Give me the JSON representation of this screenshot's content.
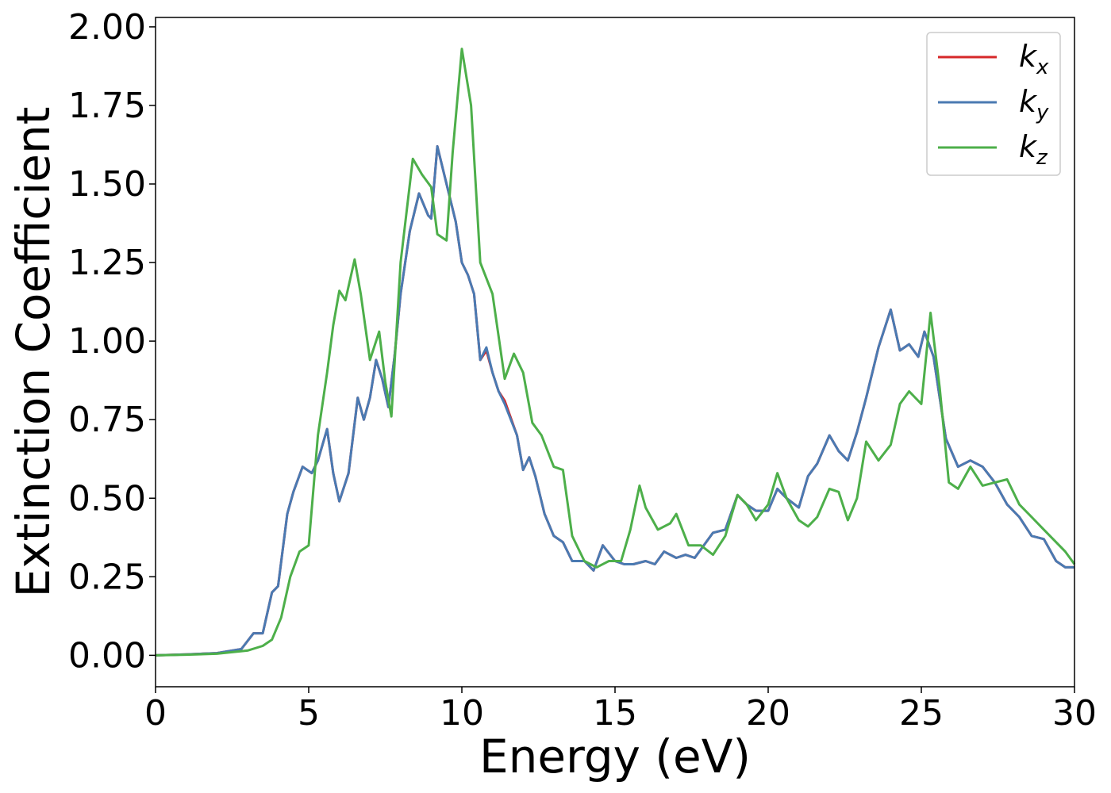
{
  "chart_data": {
    "type": "line",
    "title": "",
    "xlabel": "Energy (eV)",
    "ylabel": "Extinction Coefficient",
    "xlim": [
      0,
      30
    ],
    "ylim": [
      -0.1,
      2.03
    ],
    "xticks": [
      0,
      5,
      10,
      15,
      20,
      25,
      30
    ],
    "xtick_labels": [
      "0",
      "5",
      "10",
      "15",
      "20",
      "25",
      "30"
    ],
    "yticks": [
      0.0,
      0.25,
      0.5,
      0.75,
      1.0,
      1.25,
      1.5,
      1.75,
      2.0
    ],
    "ytick_labels": [
      "0.00",
      "0.25",
      "0.50",
      "0.75",
      "1.00",
      "1.25",
      "1.50",
      "1.75",
      "2.00"
    ],
    "grid": false,
    "legend_position": "top-right",
    "series": [
      {
        "name_base": "k",
        "name_sub": "x",
        "color": "#d62728",
        "points": [
          [
            0,
            0.0
          ],
          [
            1,
            0.003
          ],
          [
            2,
            0.007
          ],
          [
            2.8,
            0.02
          ],
          [
            3.2,
            0.07
          ],
          [
            3.5,
            0.07
          ],
          [
            3.8,
            0.2
          ],
          [
            4.0,
            0.22
          ],
          [
            4.3,
            0.45
          ],
          [
            4.5,
            0.52
          ],
          [
            4.8,
            0.6
          ],
          [
            5.1,
            0.58
          ],
          [
            5.3,
            0.62
          ],
          [
            5.6,
            0.72
          ],
          [
            5.8,
            0.58
          ],
          [
            6.0,
            0.49
          ],
          [
            6.3,
            0.58
          ],
          [
            6.6,
            0.82
          ],
          [
            6.8,
            0.75
          ],
          [
            7.0,
            0.82
          ],
          [
            7.2,
            0.94
          ],
          [
            7.4,
            0.88
          ],
          [
            7.6,
            0.79
          ],
          [
            7.8,
            0.95
          ],
          [
            8.0,
            1.15
          ],
          [
            8.3,
            1.35
          ],
          [
            8.6,
            1.47
          ],
          [
            8.9,
            1.4
          ],
          [
            9.0,
            1.39
          ],
          [
            9.2,
            1.62
          ],
          [
            9.5,
            1.5
          ],
          [
            9.8,
            1.38
          ],
          [
            10.0,
            1.25
          ],
          [
            10.2,
            1.21
          ],
          [
            10.4,
            1.15
          ],
          [
            10.6,
            0.94
          ],
          [
            10.8,
            0.97
          ],
          [
            11.0,
            0.9
          ],
          [
            11.2,
            0.84
          ],
          [
            11.4,
            0.81
          ],
          [
            11.8,
            0.7
          ],
          [
            12.0,
            0.59
          ],
          [
            12.2,
            0.63
          ],
          [
            12.4,
            0.57
          ],
          [
            12.7,
            0.45
          ],
          [
            13.0,
            0.38
          ],
          [
            13.3,
            0.36
          ],
          [
            13.6,
            0.3
          ],
          [
            14.0,
            0.3
          ],
          [
            14.3,
            0.27
          ],
          [
            14.6,
            0.35
          ],
          [
            15.0,
            0.3
          ],
          [
            15.3,
            0.29
          ],
          [
            15.6,
            0.29
          ],
          [
            16.0,
            0.3
          ],
          [
            16.3,
            0.29
          ],
          [
            16.6,
            0.33
          ],
          [
            17.0,
            0.31
          ],
          [
            17.3,
            0.32
          ],
          [
            17.6,
            0.31
          ],
          [
            17.9,
            0.35
          ],
          [
            18.2,
            0.39
          ],
          [
            18.6,
            0.4
          ],
          [
            19.0,
            0.51
          ],
          [
            19.3,
            0.48
          ],
          [
            19.6,
            0.46
          ],
          [
            20.0,
            0.46
          ],
          [
            20.3,
            0.53
          ],
          [
            20.6,
            0.5
          ],
          [
            21.0,
            0.47
          ],
          [
            21.3,
            0.57
          ],
          [
            21.6,
            0.61
          ],
          [
            22.0,
            0.7
          ],
          [
            22.3,
            0.65
          ],
          [
            22.6,
            0.62
          ],
          [
            22.9,
            0.71
          ],
          [
            23.2,
            0.82
          ],
          [
            23.6,
            0.98
          ],
          [
            24.0,
            1.1
          ],
          [
            24.3,
            0.97
          ],
          [
            24.6,
            0.99
          ],
          [
            24.9,
            0.95
          ],
          [
            25.1,
            1.03
          ],
          [
            25.4,
            0.95
          ],
          [
            25.8,
            0.69
          ],
          [
            26.2,
            0.6
          ],
          [
            26.6,
            0.62
          ],
          [
            27.0,
            0.6
          ],
          [
            27.4,
            0.55
          ],
          [
            27.8,
            0.48
          ],
          [
            28.2,
            0.44
          ],
          [
            28.6,
            0.38
          ],
          [
            29.0,
            0.37
          ],
          [
            29.4,
            0.3
          ],
          [
            29.7,
            0.28
          ],
          [
            30.0,
            0.28
          ]
        ]
      },
      {
        "name_base": "k",
        "name_sub": "y",
        "color": "#4a7ab2",
        "points": [
          [
            0,
            0.0
          ],
          [
            1,
            0.003
          ],
          [
            2,
            0.007
          ],
          [
            2.8,
            0.02
          ],
          [
            3.2,
            0.07
          ],
          [
            3.5,
            0.07
          ],
          [
            3.8,
            0.2
          ],
          [
            4.0,
            0.22
          ],
          [
            4.3,
            0.45
          ],
          [
            4.5,
            0.52
          ],
          [
            4.8,
            0.6
          ],
          [
            5.1,
            0.58
          ],
          [
            5.3,
            0.62
          ],
          [
            5.6,
            0.72
          ],
          [
            5.8,
            0.58
          ],
          [
            6.0,
            0.49
          ],
          [
            6.3,
            0.58
          ],
          [
            6.6,
            0.82
          ],
          [
            6.8,
            0.75
          ],
          [
            7.0,
            0.82
          ],
          [
            7.2,
            0.94
          ],
          [
            7.4,
            0.88
          ],
          [
            7.6,
            0.79
          ],
          [
            7.8,
            0.95
          ],
          [
            8.0,
            1.15
          ],
          [
            8.3,
            1.35
          ],
          [
            8.6,
            1.47
          ],
          [
            8.9,
            1.4
          ],
          [
            9.0,
            1.39
          ],
          [
            9.2,
            1.62
          ],
          [
            9.5,
            1.5
          ],
          [
            9.8,
            1.38
          ],
          [
            10.0,
            1.25
          ],
          [
            10.2,
            1.21
          ],
          [
            10.4,
            1.15
          ],
          [
            10.6,
            0.94
          ],
          [
            10.8,
            0.98
          ],
          [
            11.0,
            0.9
          ],
          [
            11.2,
            0.84
          ],
          [
            11.4,
            0.8
          ],
          [
            11.8,
            0.7
          ],
          [
            12.0,
            0.59
          ],
          [
            12.2,
            0.63
          ],
          [
            12.4,
            0.57
          ],
          [
            12.7,
            0.45
          ],
          [
            13.0,
            0.38
          ],
          [
            13.3,
            0.36
          ],
          [
            13.6,
            0.3
          ],
          [
            14.0,
            0.3
          ],
          [
            14.3,
            0.27
          ],
          [
            14.6,
            0.35
          ],
          [
            15.0,
            0.3
          ],
          [
            15.3,
            0.29
          ],
          [
            15.6,
            0.29
          ],
          [
            16.0,
            0.3
          ],
          [
            16.3,
            0.29
          ],
          [
            16.6,
            0.33
          ],
          [
            17.0,
            0.31
          ],
          [
            17.3,
            0.32
          ],
          [
            17.6,
            0.31
          ],
          [
            17.9,
            0.35
          ],
          [
            18.2,
            0.39
          ],
          [
            18.6,
            0.4
          ],
          [
            19.0,
            0.51
          ],
          [
            19.3,
            0.48
          ],
          [
            19.6,
            0.46
          ],
          [
            20.0,
            0.46
          ],
          [
            20.3,
            0.53
          ],
          [
            20.6,
            0.5
          ],
          [
            21.0,
            0.47
          ],
          [
            21.3,
            0.57
          ],
          [
            21.6,
            0.61
          ],
          [
            22.0,
            0.7
          ],
          [
            22.3,
            0.65
          ],
          [
            22.6,
            0.62
          ],
          [
            22.9,
            0.71
          ],
          [
            23.2,
            0.82
          ],
          [
            23.6,
            0.98
          ],
          [
            24.0,
            1.1
          ],
          [
            24.3,
            0.97
          ],
          [
            24.6,
            0.99
          ],
          [
            24.9,
            0.95
          ],
          [
            25.1,
            1.03
          ],
          [
            25.4,
            0.95
          ],
          [
            25.8,
            0.69
          ],
          [
            26.2,
            0.6
          ],
          [
            26.6,
            0.62
          ],
          [
            27.0,
            0.6
          ],
          [
            27.4,
            0.55
          ],
          [
            27.8,
            0.48
          ],
          [
            28.2,
            0.44
          ],
          [
            28.6,
            0.38
          ],
          [
            29.0,
            0.37
          ],
          [
            29.4,
            0.3
          ],
          [
            29.7,
            0.28
          ],
          [
            30.0,
            0.28
          ]
        ]
      },
      {
        "name_base": "k",
        "name_sub": "z",
        "color": "#4daf4a",
        "points": [
          [
            0,
            0.0
          ],
          [
            1,
            0.002
          ],
          [
            2,
            0.005
          ],
          [
            3,
            0.015
          ],
          [
            3.5,
            0.03
          ],
          [
            3.8,
            0.05
          ],
          [
            4.1,
            0.12
          ],
          [
            4.4,
            0.25
          ],
          [
            4.7,
            0.33
          ],
          [
            5.0,
            0.35
          ],
          [
            5.3,
            0.7
          ],
          [
            5.6,
            0.9
          ],
          [
            5.8,
            1.05
          ],
          [
            6.0,
            1.16
          ],
          [
            6.2,
            1.13
          ],
          [
            6.5,
            1.26
          ],
          [
            6.7,
            1.15
          ],
          [
            7.0,
            0.94
          ],
          [
            7.3,
            1.03
          ],
          [
            7.5,
            0.87
          ],
          [
            7.7,
            0.76
          ],
          [
            8.0,
            1.25
          ],
          [
            8.4,
            1.58
          ],
          [
            8.7,
            1.53
          ],
          [
            9.0,
            1.49
          ],
          [
            9.2,
            1.34
          ],
          [
            9.5,
            1.32
          ],
          [
            9.7,
            1.6
          ],
          [
            10.0,
            1.93
          ],
          [
            10.3,
            1.75
          ],
          [
            10.6,
            1.25
          ],
          [
            11.0,
            1.15
          ],
          [
            11.4,
            0.88
          ],
          [
            11.7,
            0.96
          ],
          [
            12.0,
            0.9
          ],
          [
            12.3,
            0.74
          ],
          [
            12.6,
            0.7
          ],
          [
            13.0,
            0.6
          ],
          [
            13.3,
            0.59
          ],
          [
            13.6,
            0.38
          ],
          [
            14.0,
            0.3
          ],
          [
            14.4,
            0.28
          ],
          [
            14.8,
            0.3
          ],
          [
            15.2,
            0.3
          ],
          [
            15.5,
            0.4
          ],
          [
            15.8,
            0.54
          ],
          [
            16.0,
            0.47
          ],
          [
            16.4,
            0.4
          ],
          [
            16.8,
            0.42
          ],
          [
            17.0,
            0.45
          ],
          [
            17.4,
            0.35
          ],
          [
            17.8,
            0.35
          ],
          [
            18.2,
            0.32
          ],
          [
            18.6,
            0.38
          ],
          [
            19.0,
            0.51
          ],
          [
            19.3,
            0.48
          ],
          [
            19.6,
            0.43
          ],
          [
            20.0,
            0.48
          ],
          [
            20.3,
            0.58
          ],
          [
            20.6,
            0.5
          ],
          [
            21.0,
            0.43
          ],
          [
            21.3,
            0.41
          ],
          [
            21.6,
            0.44
          ],
          [
            22.0,
            0.53
          ],
          [
            22.3,
            0.52
          ],
          [
            22.6,
            0.43
          ],
          [
            22.9,
            0.5
          ],
          [
            23.2,
            0.68
          ],
          [
            23.6,
            0.62
          ],
          [
            24.0,
            0.67
          ],
          [
            24.3,
            0.8
          ],
          [
            24.6,
            0.84
          ],
          [
            25.0,
            0.8
          ],
          [
            25.3,
            1.09
          ],
          [
            25.6,
            0.85
          ],
          [
            25.9,
            0.55
          ],
          [
            26.2,
            0.53
          ],
          [
            26.6,
            0.6
          ],
          [
            27.0,
            0.54
          ],
          [
            27.4,
            0.55
          ],
          [
            27.8,
            0.56
          ],
          [
            28.2,
            0.48
          ],
          [
            28.6,
            0.44
          ],
          [
            29.0,
            0.4
          ],
          [
            29.4,
            0.36
          ],
          [
            29.7,
            0.33
          ],
          [
            30.0,
            0.29
          ]
        ]
      }
    ]
  }
}
